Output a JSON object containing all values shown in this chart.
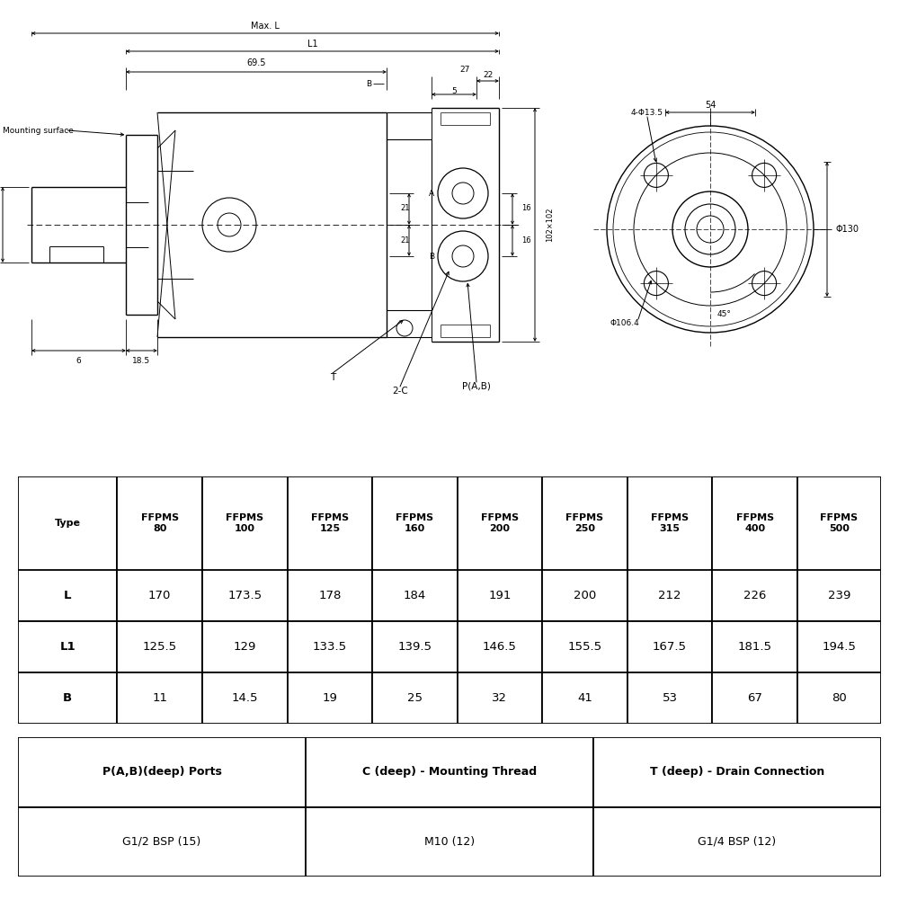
{
  "bg_color": "#ffffff",
  "table1_headers": [
    "Type",
    "FFPMS\n80",
    "FFPMS\n100",
    "FFPMS\n125",
    "FFPMS\n160",
    "FFPMS\n200",
    "FFPMS\n250",
    "FFPMS\n315",
    "FFPMS\n400",
    "FFPMS\n500"
  ],
  "table1_rows": [
    [
      "L",
      "170",
      "173.5",
      "178",
      "184",
      "191",
      "200",
      "212",
      "226",
      "239"
    ],
    [
      "L1",
      "125.5",
      "129",
      "133.5",
      "139.5",
      "146.5",
      "155.5",
      "167.5",
      "181.5",
      "194.5"
    ],
    [
      "B",
      "11",
      "14.5",
      "19",
      "25",
      "32",
      "41",
      "53",
      "67",
      "80"
    ]
  ],
  "table2_headers": [
    "P(A,B)(deep) Ports",
    "C (deep) - Mounting Thread",
    "T (deep) - Drain Connection"
  ],
  "table2_rows": [
    [
      "G1/2 BSP (15)",
      "M10 (12)",
      "G1/4 BSP (12)"
    ]
  ]
}
